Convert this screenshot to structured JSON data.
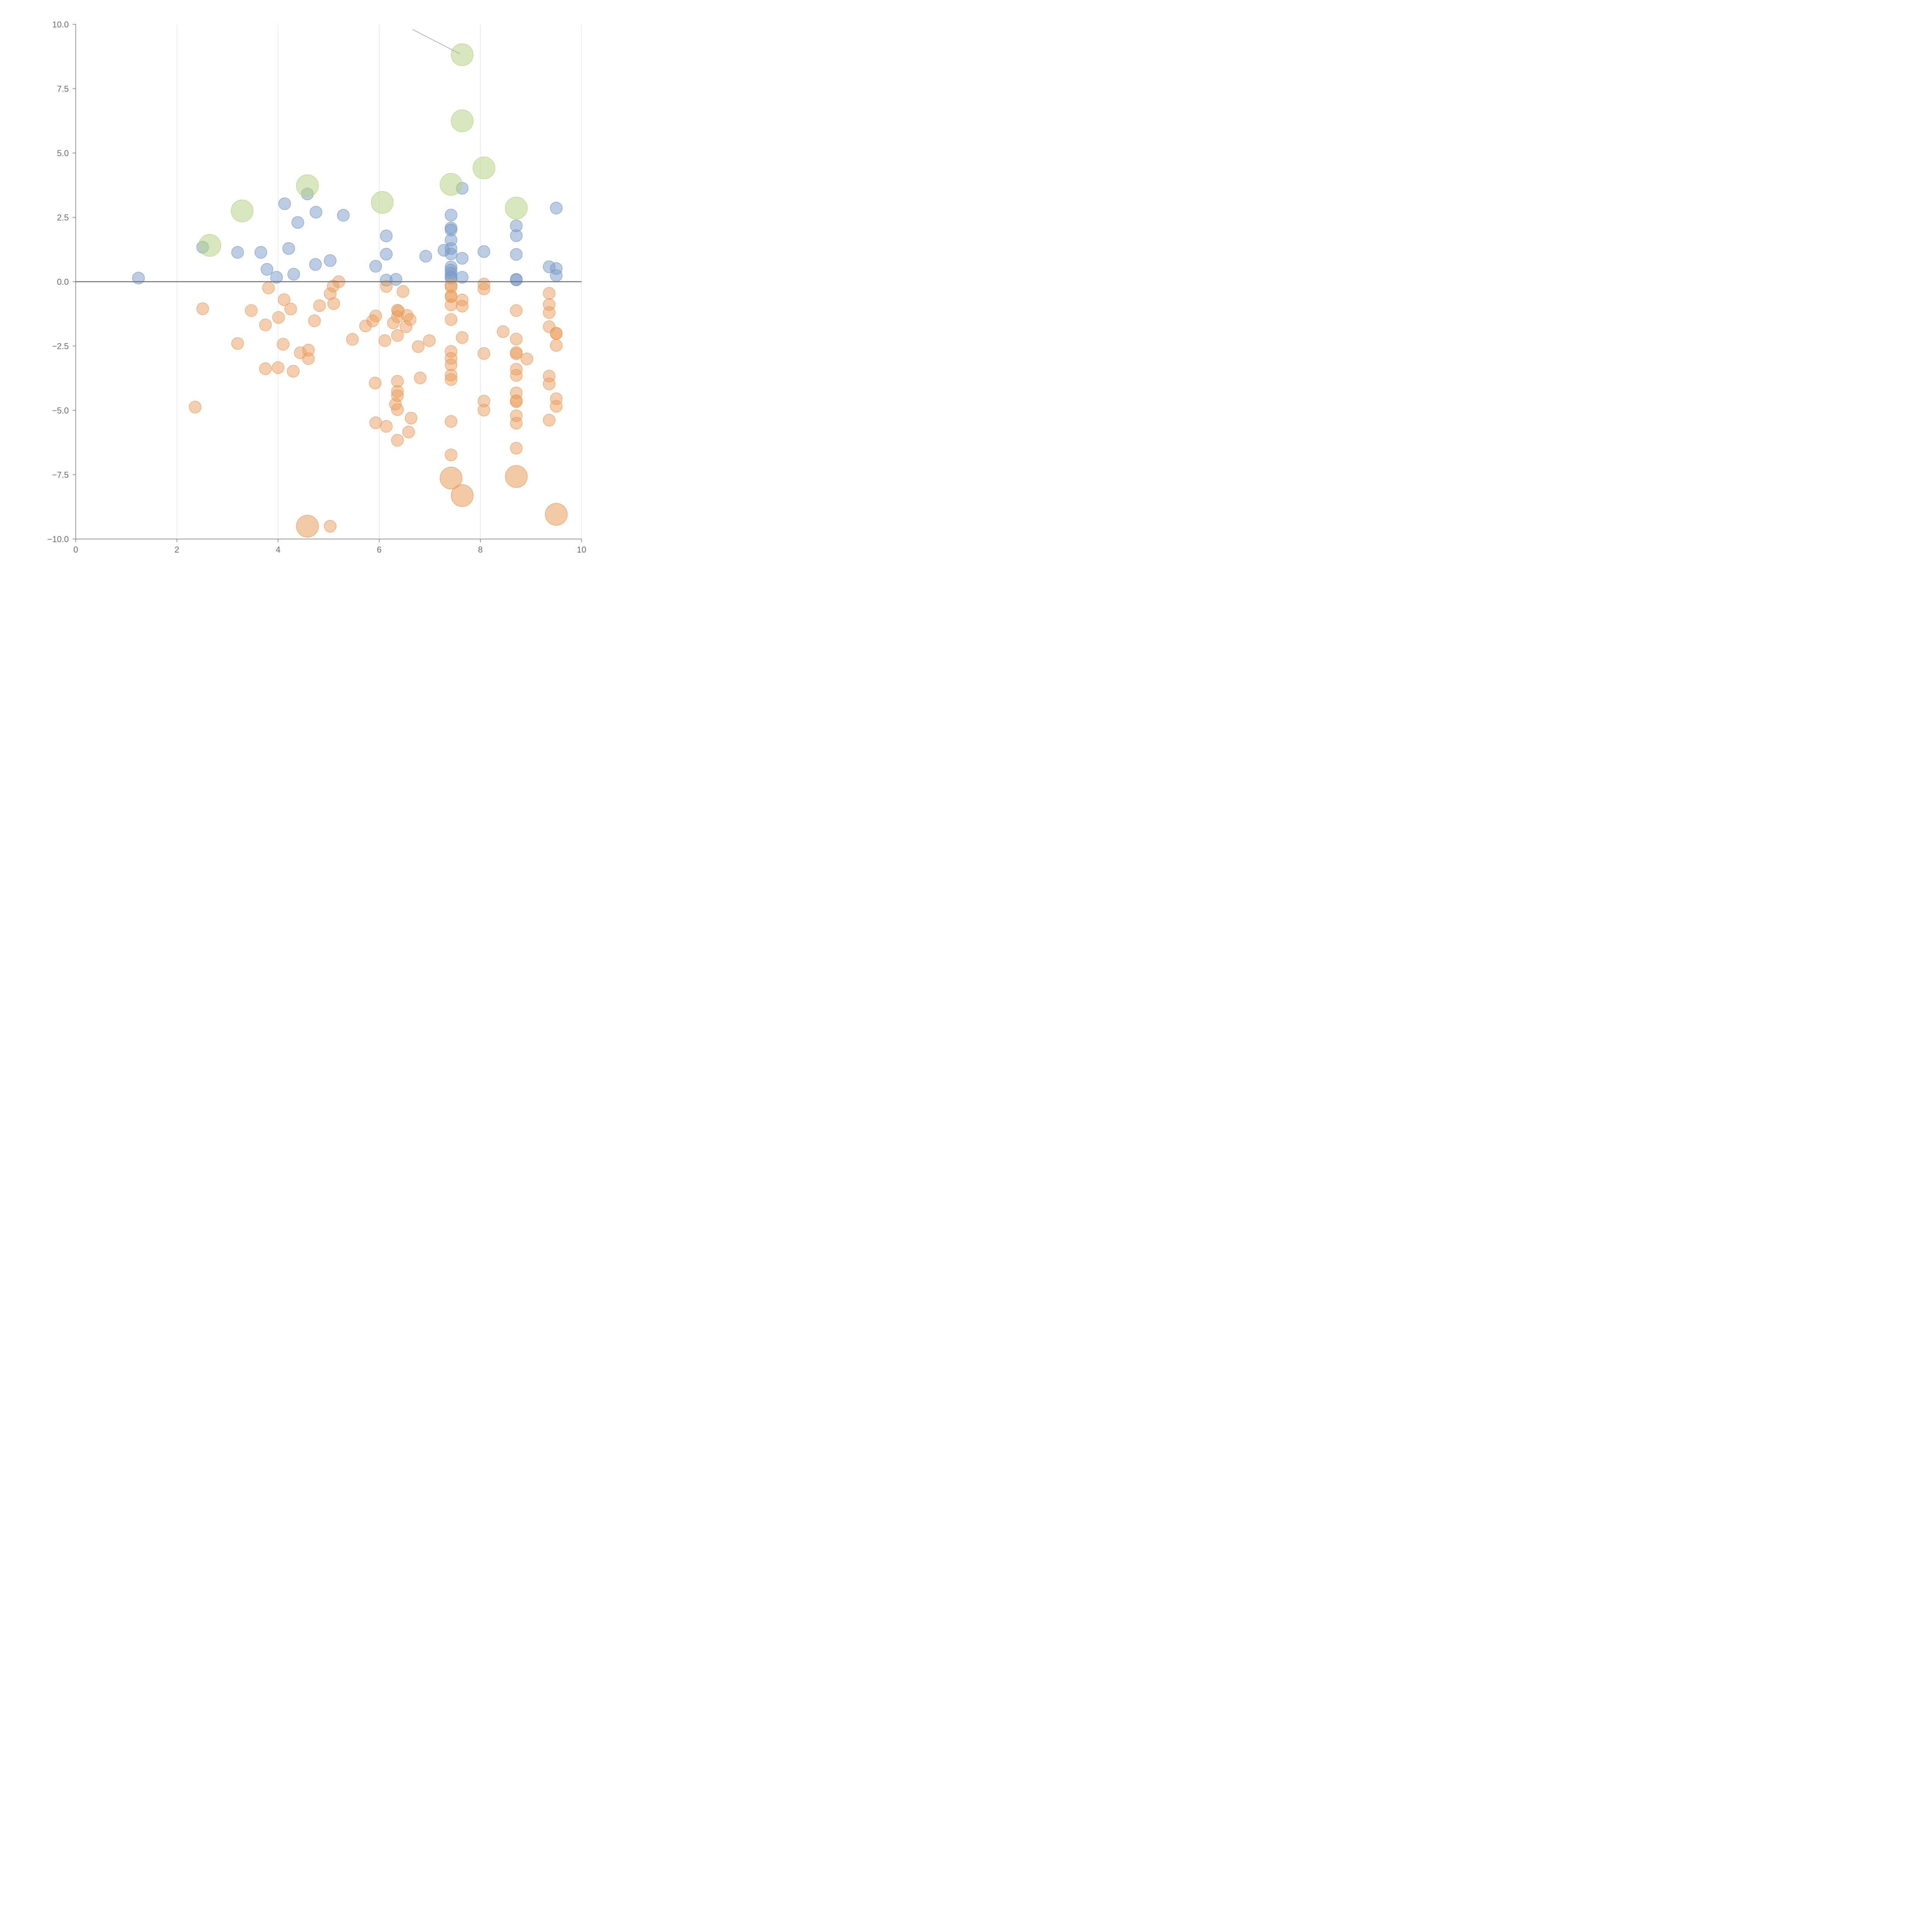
{
  "chart_data": {
    "type": "scatter",
    "title": "",
    "xlabel": "",
    "ylabel": "",
    "xlim": [
      0,
      10
    ],
    "ylim": [
      -10,
      10
    ],
    "x_ticks": [
      "0",
      "2",
      "4",
      "6",
      "8",
      "10"
    ],
    "y_ticks": [
      "10.0",
      "7.5",
      "5.0",
      "2.5",
      "0.0",
      "−2.5",
      "−5.0",
      "−7.5",
      "−10.0"
    ],
    "x_tick_values": [
      0,
      2,
      4,
      6,
      8,
      10
    ],
    "y_tick_values": [
      10,
      7.5,
      5,
      2.5,
      0,
      -2.5,
      -5,
      -7.5,
      -10
    ],
    "grid": "vertical",
    "zero_line": true,
    "series": [
      {
        "color": "#7899c8",
        "points": [
          [
            1.24,
            0.14
          ],
          [
            2.51,
            1.34
          ],
          [
            3.2,
            1.14
          ],
          [
            3.66,
            1.14
          ],
          [
            3.78,
            0.48
          ],
          [
            3.97,
            0.17
          ],
          [
            4.13,
            3.03
          ],
          [
            4.21,
            1.29
          ],
          [
            4.31,
            0.29
          ],
          [
            4.39,
            2.3
          ],
          [
            4.58,
            3.41
          ],
          [
            4.74,
            0.67
          ],
          [
            4.75,
            2.7
          ],
          [
            5.03,
            0.82
          ],
          [
            5.29,
            2.58
          ],
          [
            5.93,
            0.6
          ],
          [
            6.14,
            1.78
          ],
          [
            6.14,
            1.07
          ],
          [
            6.14,
            0.06
          ],
          [
            6.33,
            0.09
          ],
          [
            6.92,
            0.99
          ],
          [
            7.28,
            1.22
          ],
          [
            7.42,
            2.59
          ],
          [
            7.42,
            2.09
          ],
          [
            7.42,
            2.01
          ],
          [
            7.42,
            1.62
          ],
          [
            7.42,
            1.29
          ],
          [
            7.42,
            1.08
          ],
          [
            7.42,
            0.57
          ],
          [
            7.42,
            0.45
          ],
          [
            7.42,
            0.33
          ],
          [
            7.42,
            0.2
          ],
          [
            7.42,
            0.14
          ],
          [
            7.64,
            3.63
          ],
          [
            7.64,
            0.91
          ],
          [
            7.64,
            0.17
          ],
          [
            8.07,
            1.17
          ],
          [
            8.71,
            2.17
          ],
          [
            8.71,
            1.79
          ],
          [
            8.71,
            1.06
          ],
          [
            8.71,
            0.09
          ],
          [
            8.71,
            0.07
          ],
          [
            9.36,
            0.58
          ],
          [
            9.5,
            2.86
          ],
          [
            9.5,
            0.51
          ],
          [
            9.5,
            0.24
          ]
        ]
      },
      {
        "color": "#e99d5d",
        "points": [
          [
            2.36,
            -4.87
          ],
          [
            2.51,
            -1.05
          ],
          [
            3.2,
            -2.4
          ],
          [
            3.47,
            -1.12
          ],
          [
            3.75,
            -3.38
          ],
          [
            3.75,
            -1.68
          ],
          [
            3.81,
            -0.24
          ],
          [
            4.01,
            -1.39
          ],
          [
            4.0,
            -3.34
          ],
          [
            4.1,
            -2.43
          ],
          [
            4.12,
            -0.7
          ],
          [
            4.25,
            -1.06
          ],
          [
            4.3,
            -3.48
          ],
          [
            4.44,
            -2.76
          ],
          [
            4.6,
            -2.66
          ],
          [
            4.6,
            -2.99
          ],
          [
            4.72,
            -1.52
          ],
          [
            4.82,
            -0.93
          ],
          [
            5.03,
            -0.47
          ],
          [
            5.09,
            -0.17
          ],
          [
            5.1,
            -0.85
          ],
          [
            5.2,
            0.0
          ],
          [
            5.03,
            -9.5
          ],
          [
            5.47,
            -2.24
          ],
          [
            5.73,
            -1.72
          ],
          [
            5.87,
            -1.52
          ],
          [
            5.93,
            -1.33
          ],
          [
            5.92,
            -3.94
          ],
          [
            5.93,
            -5.48
          ],
          [
            6.11,
            -2.29
          ],
          [
            6.14,
            -0.18
          ],
          [
            6.14,
            -5.62
          ],
          [
            6.28,
            -1.6
          ],
          [
            6.32,
            -4.76
          ],
          [
            6.36,
            -1.11
          ],
          [
            6.36,
            -1.36
          ],
          [
            6.36,
            -2.09
          ],
          [
            6.36,
            -3.87
          ],
          [
            6.36,
            -4.26
          ],
          [
            6.36,
            -4.43
          ],
          [
            6.36,
            -4.97
          ],
          [
            6.36,
            -6.16
          ],
          [
            6.38,
            -1.14
          ],
          [
            6.47,
            -0.38
          ],
          [
            6.53,
            -1.75
          ],
          [
            6.55,
            -1.31
          ],
          [
            6.61,
            -1.47
          ],
          [
            6.58,
            -5.84
          ],
          [
            6.63,
            -5.3
          ],
          [
            6.77,
            -2.52
          ],
          [
            6.81,
            -3.74
          ],
          [
            6.99,
            -2.29
          ],
          [
            7.42,
            -0.13
          ],
          [
            7.42,
            -0.2
          ],
          [
            7.42,
            -0.55
          ],
          [
            7.42,
            -0.58
          ],
          [
            7.42,
            -0.9
          ],
          [
            7.42,
            -1.47
          ],
          [
            7.42,
            -2.71
          ],
          [
            7.42,
            -2.98
          ],
          [
            7.42,
            -3.23
          ],
          [
            7.42,
            -3.63
          ],
          [
            7.42,
            -3.8
          ],
          [
            7.42,
            -5.43
          ],
          [
            7.42,
            -6.73
          ],
          [
            7.64,
            -0.71
          ],
          [
            7.64,
            -0.95
          ],
          [
            7.64,
            -2.17
          ],
          [
            8.07,
            -0.09
          ],
          [
            8.07,
            -0.28
          ],
          [
            8.07,
            -2.79
          ],
          [
            8.07,
            -4.64
          ],
          [
            8.07,
            -4.99
          ],
          [
            8.45,
            -1.94
          ],
          [
            8.71,
            -1.12
          ],
          [
            8.71,
            -2.23
          ],
          [
            8.71,
            -2.75
          ],
          [
            8.71,
            -2.8
          ],
          [
            8.71,
            -3.4
          ],
          [
            8.71,
            -3.64
          ],
          [
            8.71,
            -4.32
          ],
          [
            8.71,
            -4.62
          ],
          [
            8.71,
            -4.66
          ],
          [
            8.71,
            -5.21
          ],
          [
            8.71,
            -5.5
          ],
          [
            8.71,
            -6.47
          ],
          [
            8.92,
            -3.0
          ],
          [
            9.36,
            -0.45
          ],
          [
            9.36,
            -0.89
          ],
          [
            9.36,
            -1.2
          ],
          [
            9.36,
            -1.75
          ],
          [
            9.36,
            -3.67
          ],
          [
            9.36,
            -3.97
          ],
          [
            9.36,
            -5.38
          ],
          [
            9.5,
            -2.0
          ],
          [
            9.5,
            -2.02
          ],
          [
            9.5,
            -2.48
          ],
          [
            9.5,
            -4.55
          ],
          [
            9.5,
            -4.84
          ]
        ],
        "big_points": [
          [
            4.58,
            -9.5
          ],
          [
            7.42,
            -7.63
          ],
          [
            7.64,
            -8.31
          ],
          [
            8.71,
            -7.57
          ],
          [
            9.5,
            -9.04
          ]
        ]
      },
      {
        "color": "#b8d386",
        "big_points": [
          [
            2.65,
            1.41
          ],
          [
            3.29,
            2.75
          ],
          [
            4.58,
            3.73
          ],
          [
            6.06,
            3.08
          ],
          [
            7.42,
            3.78
          ],
          [
            7.64,
            6.25
          ],
          [
            7.64,
            8.82
          ],
          [
            8.07,
            4.42
          ],
          [
            8.71,
            2.86
          ]
        ]
      }
    ],
    "annotation_leader": {
      "from": [
        6.66,
        9.8
      ],
      "to": [
        7.6,
        8.85
      ]
    }
  }
}
